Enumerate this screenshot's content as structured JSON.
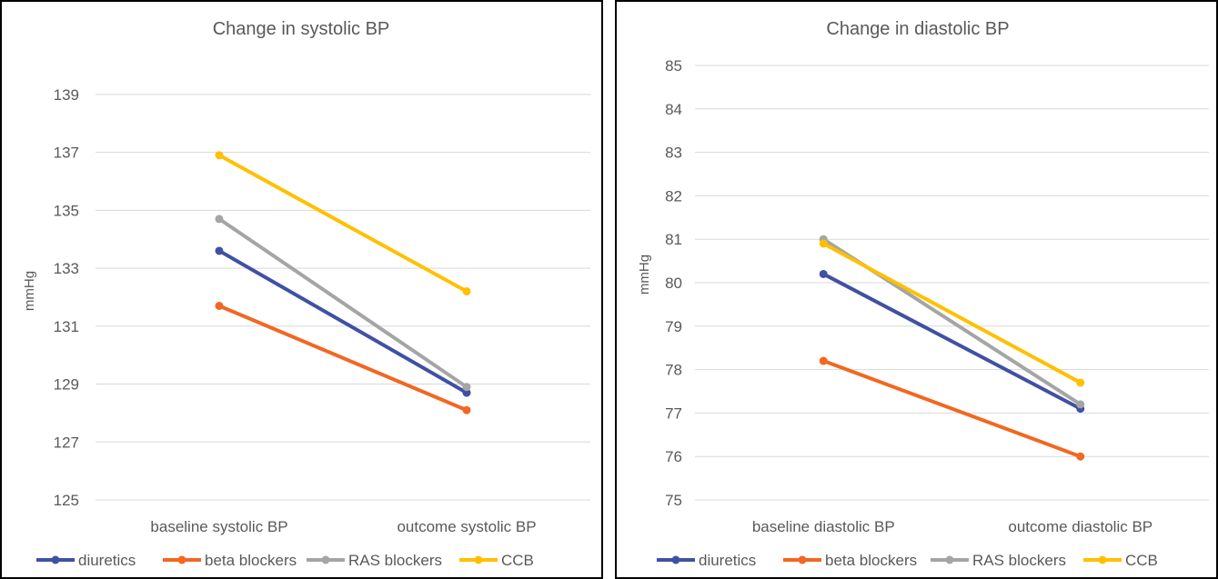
{
  "chart_data": [
    {
      "type": "line",
      "title": "Change in systolic BP",
      "xlabel": "",
      "ylabel": "mmHg",
      "categories": [
        "baseline systolic BP",
        "outcome systolic BP"
      ],
      "yticks": [
        125,
        127,
        129,
        131,
        133,
        135,
        137,
        139
      ],
      "ylim": [
        125,
        140
      ],
      "grid": true,
      "legend_position": "bottom",
      "series": [
        {
          "name": "diuretics",
          "color": "#3f51a3",
          "values": [
            133.6,
            128.7
          ]
        },
        {
          "name": "beta blockers",
          "color": "#f26722",
          "values": [
            131.7,
            128.1
          ]
        },
        {
          "name": "RAS blockers",
          "color": "#a5a5a5",
          "values": [
            134.7,
            128.9
          ]
        },
        {
          "name": "CCB",
          "color": "#ffc000",
          "values": [
            136.9,
            132.2
          ]
        }
      ]
    },
    {
      "type": "line",
      "title": "Change in diastolic BP",
      "xlabel": "",
      "ylabel": "mmHg",
      "categories": [
        "baseline diastolic BP",
        "outcome diastolic BP"
      ],
      "yticks": [
        75,
        76,
        77,
        78,
        79,
        80,
        81,
        82,
        83,
        84,
        85
      ],
      "ylim": [
        75,
        85
      ],
      "grid": true,
      "legend_position": "bottom",
      "series": [
        {
          "name": "diuretics",
          "color": "#3f51a3",
          "values": [
            80.2,
            77.1
          ]
        },
        {
          "name": "beta blockers",
          "color": "#f26722",
          "values": [
            78.2,
            76.0
          ]
        },
        {
          "name": "RAS blockers",
          "color": "#a5a5a5",
          "values": [
            81.0,
            77.2
          ]
        },
        {
          "name": "CCB",
          "color": "#ffc000",
          "values": [
            80.9,
            77.7
          ]
        }
      ]
    }
  ]
}
